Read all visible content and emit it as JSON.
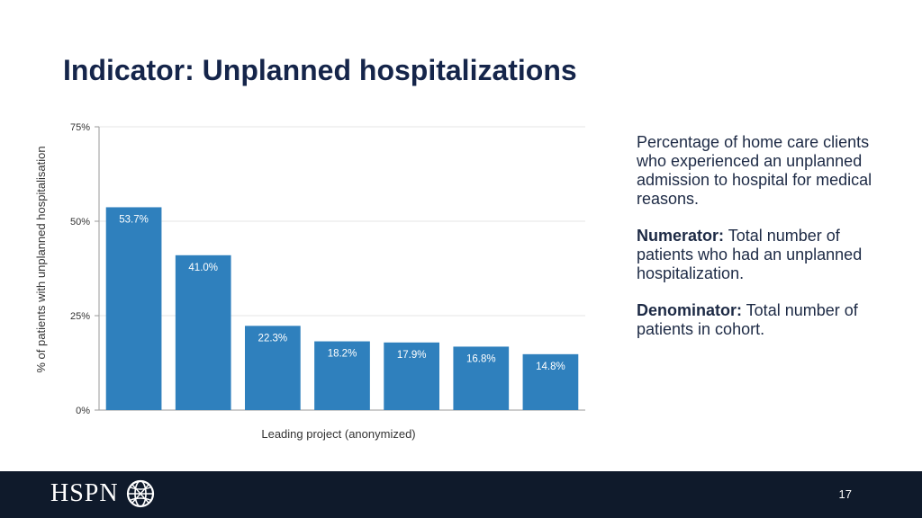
{
  "slide": {
    "title": "Indicator: Unplanned hospitalizations",
    "page_number": "17"
  },
  "description": {
    "intro": "Percentage of home care clients who experienced an unplanned admission to hospital for medical reasons.",
    "numerator_label": "Numerator:",
    "numerator_text": " Total number of patients who had an unplanned hospitalization.",
    "denominator_label": "Denominator:",
    "denominator_text": " Total number of patients in cohort."
  },
  "footer": {
    "logo_text": "HSPN",
    "logo_icon": "globe-icon",
    "background_color": "#0f1a2b"
  },
  "chart_data": {
    "type": "bar",
    "title": "",
    "xlabel": "Leading project (anonymized)",
    "ylabel": "% of patients with unplanned hospitalisation",
    "categories": [
      "",
      "",
      "",
      "",
      "",
      "",
      ""
    ],
    "values": [
      53.7,
      41.0,
      22.3,
      18.2,
      17.9,
      16.8,
      14.8
    ],
    "value_labels": [
      "53.7%",
      "41.0%",
      "22.3%",
      "18.2%",
      "17.9%",
      "16.8%",
      "14.8%"
    ],
    "ylim": [
      0,
      75
    ],
    "yticks": [
      0,
      25,
      50,
      75
    ],
    "ytick_labels": [
      "0%",
      "25%",
      "50%",
      "75%"
    ],
    "grid": true,
    "legend": "none",
    "bar_color": "#2f80bd"
  }
}
